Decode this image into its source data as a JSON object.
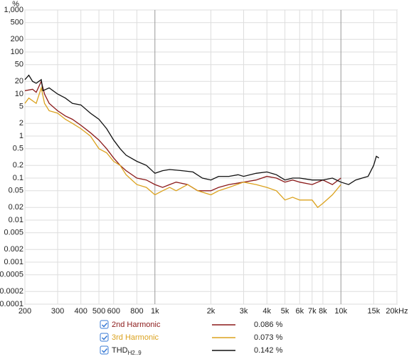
{
  "chart_data": {
    "type": "line",
    "y_label": "%",
    "log_x": true,
    "log_y": true,
    "grid": true,
    "xlim": [
      200,
      20000
    ],
    "ylim": [
      0.0001,
      1000
    ],
    "xticks": [
      200,
      300,
      400,
      500,
      600,
      800,
      {
        "value": 1000,
        "label": "1k"
      },
      {
        "value": 2000,
        "label": "2k"
      },
      {
        "value": 3000,
        "label": "3k"
      },
      {
        "value": 4000,
        "label": "4k"
      },
      {
        "value": 5000,
        "label": "5k"
      },
      {
        "value": 6000,
        "label": "6k"
      },
      {
        "value": 7000,
        "label": "7k"
      },
      {
        "value": 8000,
        "label": "8k"
      },
      {
        "value": 10000,
        "label": "10k"
      },
      {
        "value": 15000,
        "label": "15k"
      },
      {
        "value": 20000,
        "label": "20kHz"
      }
    ],
    "yticks": [
      {
        "value": 1000,
        "label": "1,000"
      },
      500,
      200,
      100,
      50,
      20,
      10,
      5,
      2,
      1,
      0.5,
      0.2,
      0.1,
      0.05,
      0.02,
      0.01,
      0.005,
      0.002,
      0.001,
      0.0005,
      0.0002,
      0.0001
    ],
    "series": [
      {
        "name": "2nd Harmonic",
        "legend_value": "0.086 %",
        "color": "#8b1a1a",
        "x": [
          200,
          220,
          230,
          245,
          255,
          270,
          300,
          330,
          360,
          400,
          450,
          500,
          550,
          600,
          650,
          700,
          800,
          900,
          1000,
          1100,
          1200,
          1300,
          1500,
          1700,
          2000,
          2200,
          2500,
          3000,
          3500,
          4000,
          4500,
          5000,
          5500,
          6000,
          7000,
          8000,
          9000,
          10000
        ],
        "values": [
          12,
          13,
          11,
          20,
          10,
          6,
          4,
          3,
          2.5,
          1.8,
          1.2,
          0.8,
          0.5,
          0.3,
          0.2,
          0.15,
          0.1,
          0.09,
          0.07,
          0.06,
          0.07,
          0.08,
          0.07,
          0.05,
          0.05,
          0.06,
          0.07,
          0.08,
          0.09,
          0.11,
          0.1,
          0.08,
          0.09,
          0.08,
          0.07,
          0.09,
          0.07,
          0.1
        ]
      },
      {
        "name": "3rd Harmonic",
        "legend_value": "0.073 %",
        "color": "#dba21e",
        "x": [
          200,
          210,
          230,
          245,
          255,
          270,
          300,
          330,
          360,
          400,
          450,
          500,
          550,
          600,
          650,
          700,
          800,
          900,
          1000,
          1100,
          1200,
          1300,
          1500,
          1700,
          2000,
          2200,
          2500,
          3000,
          3500,
          4000,
          4500,
          5000,
          5500,
          6000,
          7000,
          7500,
          8000,
          9000,
          10000
        ],
        "values": [
          6,
          8,
          6,
          14,
          6,
          4,
          3.5,
          2.5,
          2,
          1.5,
          1,
          0.5,
          0.4,
          0.25,
          0.2,
          0.12,
          0.07,
          0.06,
          0.04,
          0.05,
          0.06,
          0.05,
          0.07,
          0.05,
          0.04,
          0.05,
          0.06,
          0.08,
          0.07,
          0.06,
          0.05,
          0.03,
          0.035,
          0.03,
          0.03,
          0.02,
          0.025,
          0.04,
          0.07
        ]
      },
      {
        "name": "THD",
        "name_sub": "H2..9",
        "legend_value": "0.142 %",
        "color": "#111111",
        "x": [
          200,
          210,
          220,
          230,
          245,
          250,
          270,
          300,
          330,
          360,
          400,
          450,
          500,
          550,
          600,
          650,
          700,
          800,
          900,
          1000,
          1100,
          1200,
          1400,
          1600,
          1800,
          2000,
          2200,
          2500,
          2800,
          3000,
          3500,
          4000,
          4500,
          5000,
          5500,
          6000,
          7000,
          8000,
          9000,
          10000,
          11000,
          12000,
          13000,
          14000,
          15000,
          15500,
          16000
        ],
        "values": [
          22,
          28,
          20,
          18,
          22,
          12,
          14,
          10,
          8,
          6,
          5.5,
          3.5,
          2.5,
          1.5,
          0.8,
          0.5,
          0.35,
          0.25,
          0.2,
          0.13,
          0.15,
          0.16,
          0.15,
          0.14,
          0.1,
          0.09,
          0.11,
          0.11,
          0.12,
          0.11,
          0.13,
          0.14,
          0.12,
          0.09,
          0.1,
          0.1,
          0.09,
          0.09,
          0.1,
          0.08,
          0.07,
          0.09,
          0.1,
          0.11,
          0.2,
          0.33,
          0.3
        ]
      }
    ]
  }
}
